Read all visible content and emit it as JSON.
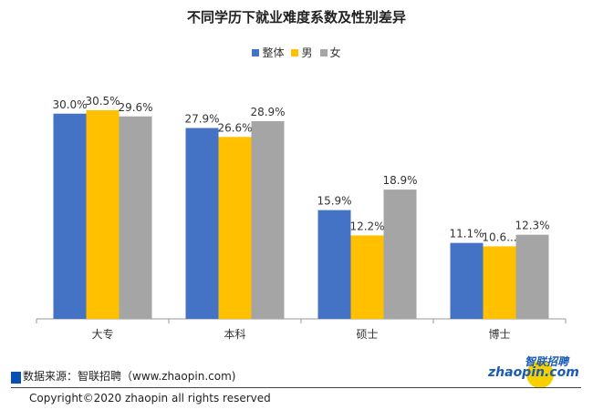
{
  "chart_data": {
    "type": "bar",
    "title": "不同学历下就业难度系数及性别差异",
    "categories": [
      "大专",
      "本科",
      "硕士",
      "博士"
    ],
    "series": [
      {
        "name": "整体",
        "color": "#4472c4",
        "values": [
          30.0,
          27.9,
          15.9,
          11.1
        ],
        "labels": [
          "30.0%",
          "27.9%",
          "15.9%",
          "11.1%"
        ]
      },
      {
        "name": "男",
        "color": "#ffc000",
        "values": [
          30.5,
          26.6,
          12.2,
          10.6
        ],
        "labels": [
          "30.5%",
          "26.6%",
          "12.2%",
          "10.6..."
        ]
      },
      {
        "name": "女",
        "color": "#a5a5a5",
        "values": [
          29.6,
          28.9,
          18.9,
          12.3
        ],
        "labels": [
          "29.6%",
          "28.9%",
          "18.9%",
          "12.3%"
        ]
      }
    ],
    "xlabel": "",
    "ylabel": "",
    "ylim": [
      0,
      30.5
    ],
    "grid": false,
    "legend_position": "top"
  },
  "footer": {
    "source": "数据来源：智联招聘（www.zhaopin.com)",
    "copyright": "Copyright©2020 zhaopin all rights reserved",
    "logo_cn": "智联招聘",
    "logo_en": "zhaopin.com"
  }
}
